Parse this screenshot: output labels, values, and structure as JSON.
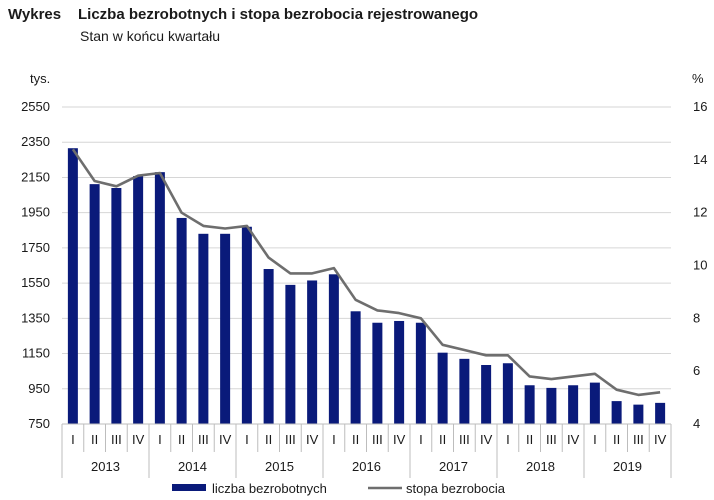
{
  "header": {
    "lead": "Wykres",
    "title": "Liczba bezrobotnych i stopa bezrobocia rejestrowanego",
    "subtitle": "Stan w końcu kwartału"
  },
  "chart_data": {
    "type": "bar",
    "left_unit": "tys.",
    "right_unit": "%",
    "left_ticks": [
      "750",
      "950",
      "1150",
      "1350",
      "1550",
      "1750",
      "1950",
      "2150",
      "2350",
      "2550"
    ],
    "right_ticks": [
      "4",
      "6",
      "8",
      "10",
      "12",
      "14",
      "16"
    ],
    "ylim_left": [
      750,
      2550
    ],
    "ylim_right": [
      4,
      16
    ],
    "years": [
      "2013",
      "2014",
      "2015",
      "2016",
      "2017",
      "2018",
      "2019"
    ],
    "quarters": [
      "I",
      "II",
      "III",
      "IV"
    ],
    "categories": [
      "I",
      "II",
      "III",
      "IV",
      "I",
      "II",
      "III",
      "IV",
      "I",
      "II",
      "III",
      "IV",
      "I",
      "II",
      "III",
      "IV",
      "I",
      "II",
      "III",
      "IV",
      "I",
      "II",
      "III",
      "IV",
      "I",
      "II",
      "III",
      "IV"
    ],
    "series": [
      {
        "name": "liczba bezrobotnych",
        "axis": "left",
        "type": "bar",
        "color": "#0a1a7a",
        "values": [
          2316,
          2112,
          2090,
          2158,
          2180,
          1920,
          1830,
          1830,
          1870,
          1630,
          1540,
          1565,
          1600,
          1390,
          1325,
          1335,
          1325,
          1155,
          1120,
          1085,
          1095,
          970,
          955,
          970,
          985,
          880,
          860,
          870
        ]
      },
      {
        "name": "stopa bezrobocia",
        "axis": "right",
        "type": "line",
        "color": "#6e6e6e",
        "values": [
          14.4,
          13.2,
          13.0,
          13.4,
          13.5,
          12.0,
          11.5,
          11.4,
          11.5,
          10.3,
          9.7,
          9.7,
          9.9,
          8.7,
          8.3,
          8.2,
          8.0,
          7.0,
          6.8,
          6.6,
          6.6,
          5.8,
          5.7,
          5.8,
          5.9,
          5.3,
          5.1,
          5.2
        ]
      }
    ],
    "grid": true,
    "legend_position": "bottom"
  }
}
